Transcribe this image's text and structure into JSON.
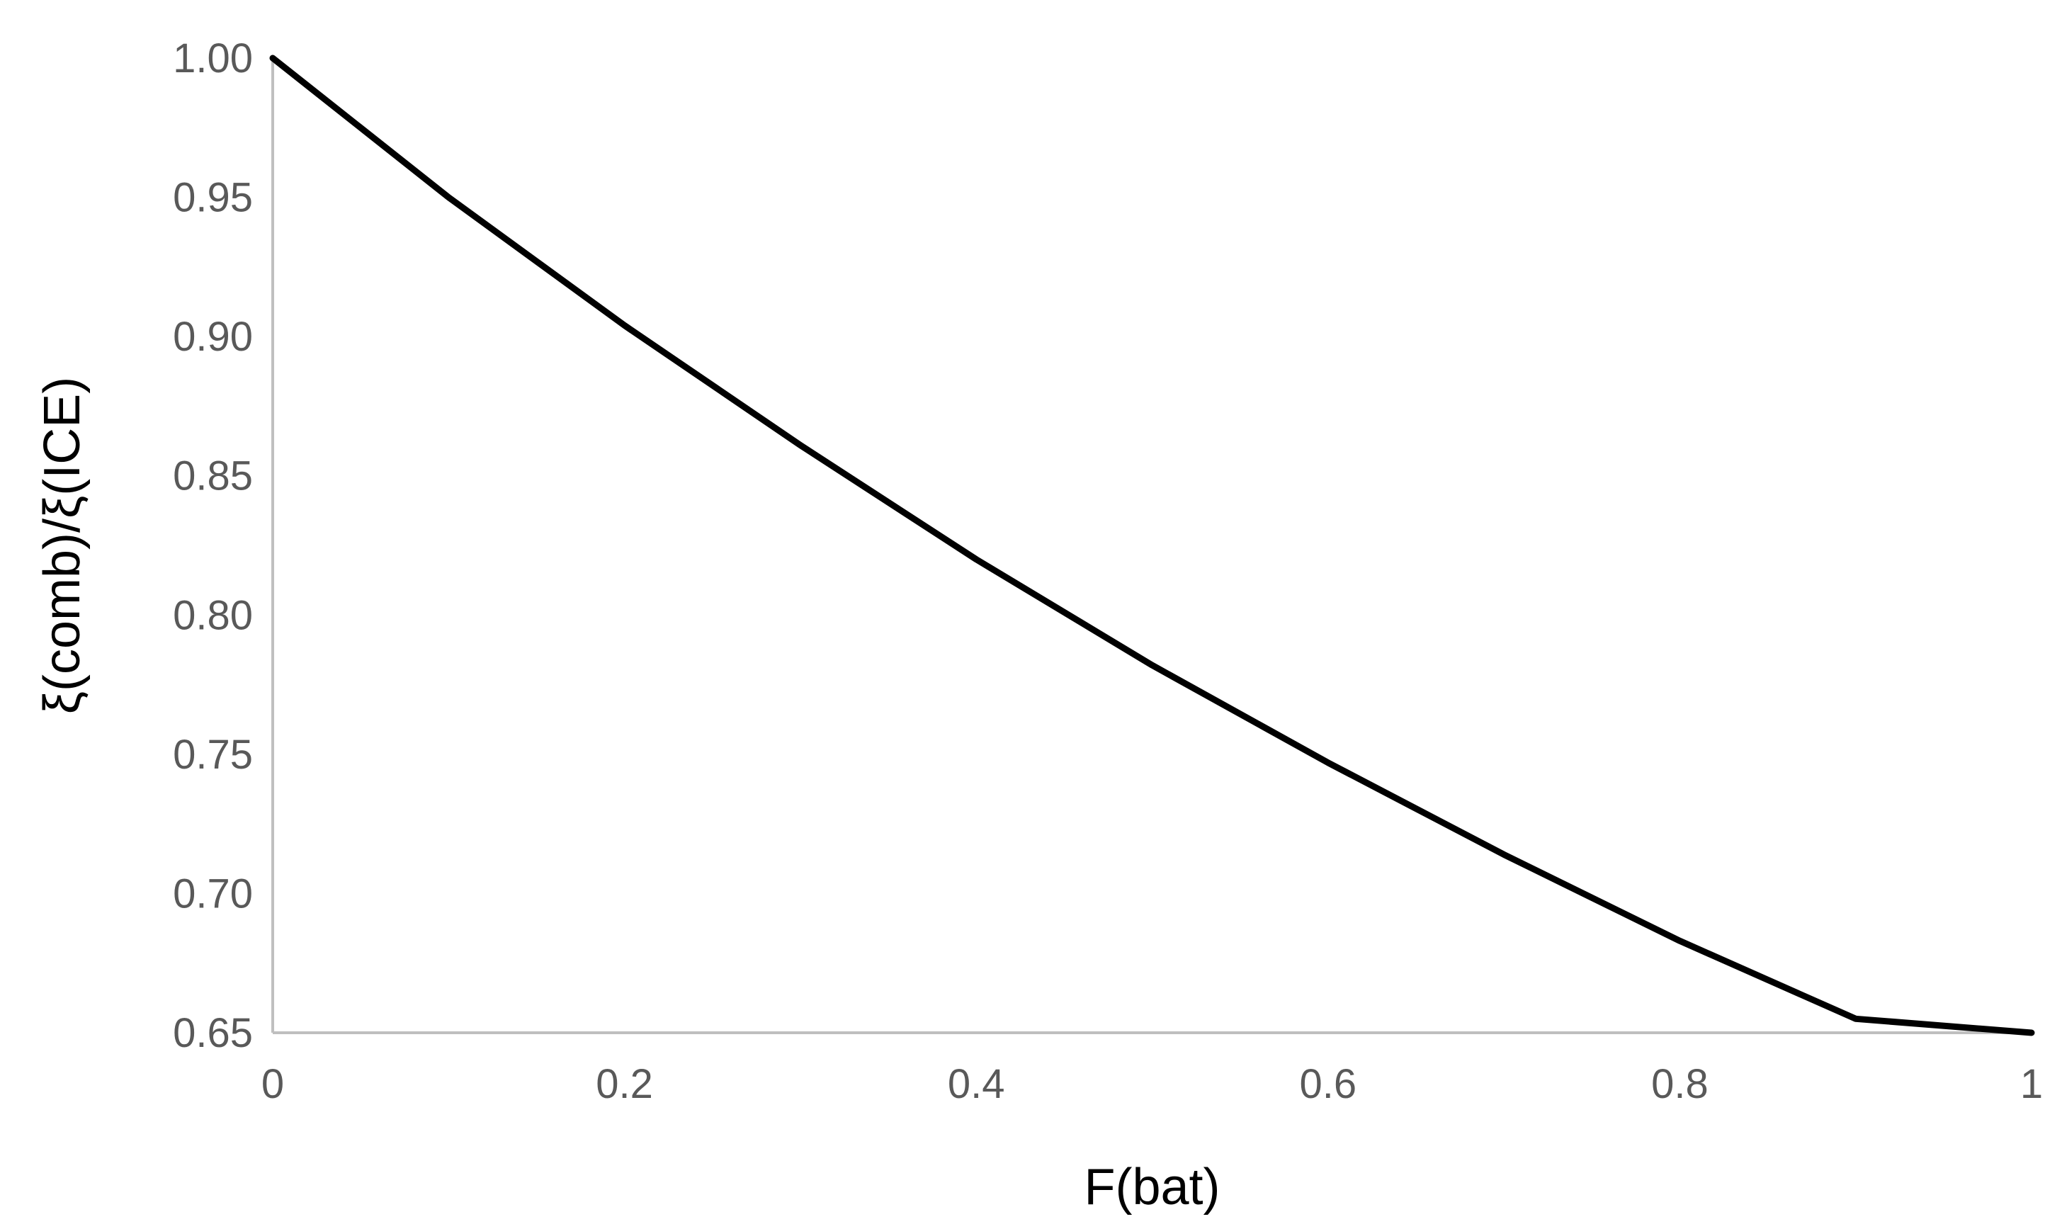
{
  "chart_data": {
    "type": "line",
    "title": "",
    "xlabel": "F(bat)",
    "ylabel": "ξ(comb)/ξ(ICE)",
    "xlim": [
      0,
      1
    ],
    "ylim": [
      0.65,
      1.0
    ],
    "xticks": [
      "0",
      "0.2",
      "0.4",
      "0.6",
      "0.8",
      "1"
    ],
    "yticks": [
      "1.00",
      "0.95",
      "0.90",
      "0.85",
      "0.80",
      "0.75",
      "0.70",
      "0.65"
    ],
    "grid": false,
    "legend": "none",
    "series": [
      {
        "color": "#000000",
        "x": [
          0,
          0.1,
          0.2,
          0.3,
          0.4,
          0.5,
          0.6,
          0.7,
          0.8,
          0.9,
          1.0
        ],
        "y": [
          1.0,
          0.95,
          0.904,
          0.861,
          0.82,
          0.782,
          0.747,
          0.714,
          0.683,
          0.655,
          0.65
        ]
      }
    ]
  }
}
